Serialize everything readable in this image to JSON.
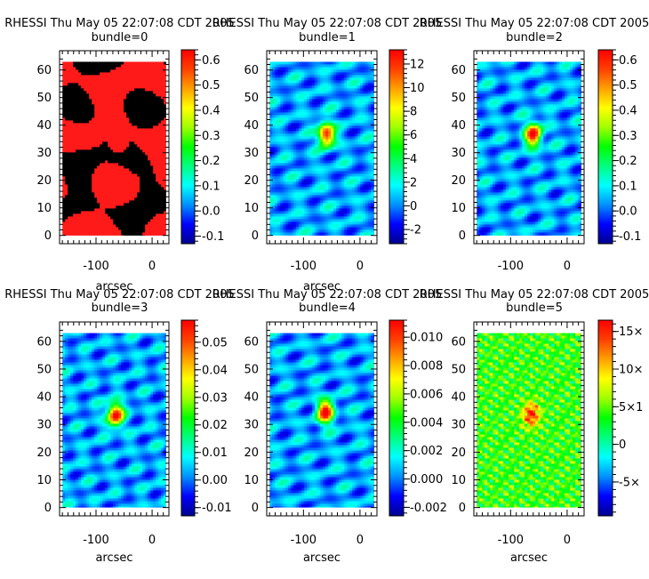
{
  "colors": {
    "colormap": [
      "#00008f",
      "#0000ff",
      "#0090ff",
      "#00ffff",
      "#00ff80",
      "#00ff00",
      "#a0ff00",
      "#ffff00",
      "#ffa000",
      "#ff4000",
      "#ff0000"
    ],
    "mask_on": "#ff1a1a",
    "mask_off": "#000000"
  },
  "chart_data": [
    {
      "type": "heatmap",
      "title": "RHESSI Thu May 05 22:07:08 CDT 2005",
      "subtitle": "bundle=0",
      "xlabel": "arcsec",
      "ylabel": "",
      "xlim": [
        -165,
        30
      ],
      "ylim": [
        -3,
        67
      ],
      "xticks": [
        "-100",
        "0"
      ],
      "yticks": [
        "0",
        "10",
        "20",
        "30",
        "40",
        "50",
        "60"
      ],
      "image_extent": {
        "x": [
          -160,
          25
        ],
        "y": [
          0,
          63
        ]
      },
      "source_x": -62,
      "source_y": 37,
      "colorbar": {
        "range": [
          -0.13,
          0.64
        ],
        "ticks": [
          "-0.1",
          "0.0",
          "0.1",
          "0.2",
          "0.3",
          "0.4",
          "0.5",
          "0.6"
        ],
        "tick_values": [
          -0.1,
          0.0,
          0.1,
          0.2,
          0.3,
          0.4,
          0.5,
          0.6
        ]
      }
    },
    {
      "type": "heatmap",
      "title": "RHESSI Thu May 05 22:07:08 CDT 2005",
      "subtitle": "bundle=1",
      "xlabel": "arcsec",
      "ylabel": "",
      "xlim": [
        -165,
        30
      ],
      "ylim": [
        -3,
        67
      ],
      "xticks": [
        "-100",
        "0"
      ],
      "yticks": [
        "0",
        "10",
        "20",
        "30",
        "40",
        "50",
        "60"
      ],
      "image_extent": {
        "x": [
          -160,
          25
        ],
        "y": [
          0,
          63
        ]
      },
      "source_x": -62,
      "source_y": 37,
      "colorbar": {
        "range": [
          -3.2,
          13.2
        ],
        "ticks": [
          "-2",
          "0",
          "2",
          "4",
          "6",
          "8",
          "10",
          "12"
        ],
        "tick_values": [
          -2,
          0,
          2,
          4,
          6,
          8,
          10,
          12
        ]
      }
    },
    {
      "type": "heatmap",
      "title": "RHESSI Thu May 05 22:07:08 CDT 2005",
      "subtitle": "bundle=2",
      "xlabel": "",
      "ylabel": "",
      "xlim": [
        -165,
        30
      ],
      "ylim": [
        -3,
        67
      ],
      "xticks": [
        "-100",
        "0"
      ],
      "yticks": [
        "0",
        "10",
        "20",
        "30",
        "40",
        "50",
        "60"
      ],
      "image_extent": {
        "x": [
          -160,
          25
        ],
        "y": [
          0,
          63
        ]
      },
      "source_x": -62,
      "source_y": 37,
      "colorbar": {
        "range": [
          -0.13,
          0.64
        ],
        "ticks": [
          "-0.1",
          "0.0",
          "0.1",
          "0.2",
          "0.3",
          "0.4",
          "0.5",
          "0.6"
        ],
        "tick_values": [
          -0.1,
          0.0,
          0.1,
          0.2,
          0.3,
          0.4,
          0.5,
          0.6
        ]
      }
    },
    {
      "type": "heatmap",
      "title": "RHESSI Thu May 05 22:07:08 CDT 2005",
      "subtitle": "bundle=3",
      "xlabel": "arcsec",
      "ylabel": "",
      "xlim": [
        -165,
        30
      ],
      "ylim": [
        -3,
        67
      ],
      "xticks": [
        "-100",
        "0"
      ],
      "yticks": [
        "0",
        "10",
        "20",
        "30",
        "40",
        "50",
        "60"
      ],
      "image_extent": {
        "x": [
          -160,
          25
        ],
        "y": [
          0,
          63
        ]
      },
      "source_x": -68,
      "source_y": 34,
      "colorbar": {
        "range": [
          -0.013,
          0.058
        ],
        "ticks": [
          "-0.01",
          "0.00",
          "0.01",
          "0.02",
          "0.03",
          "0.04",
          "0.05"
        ],
        "tick_values": [
          -0.01,
          0.0,
          0.01,
          0.02,
          0.03,
          0.04,
          0.05
        ]
      }
    },
    {
      "type": "heatmap",
      "title": "RHESSI Thu May 05 22:07:08 CDT 2005",
      "subtitle": "bundle=4",
      "xlabel": "arcsec",
      "ylabel": "",
      "xlim": [
        -165,
        30
      ],
      "ylim": [
        -3,
        67
      ],
      "xticks": [
        "-100",
        "0"
      ],
      "yticks": [
        "0",
        "10",
        "20",
        "30",
        "40",
        "50",
        "60"
      ],
      "image_extent": {
        "x": [
          -160,
          25
        ],
        "y": [
          0,
          63
        ]
      },
      "source_x": -63,
      "source_y": 35,
      "colorbar": {
        "range": [
          -0.0026,
          0.0112
        ],
        "ticks": [
          "-0.002",
          "0.000",
          "0.002",
          "0.004",
          "0.006",
          "0.008",
          "0.010"
        ],
        "tick_values": [
          -0.002,
          0.0,
          0.002,
          0.004,
          0.006,
          0.008,
          0.01
        ]
      }
    },
    {
      "type": "heatmap",
      "title": "RHESSI Thu May 05 22:07:08 CDT 2005",
      "subtitle": "bundle=5",
      "xlabel": "arcsec",
      "ylabel": "",
      "xlim": [
        -165,
        30
      ],
      "ylim": [
        -3,
        67
      ],
      "xticks": [
        "-100",
        "0"
      ],
      "yticks": [
        "0",
        "10",
        "20",
        "30",
        "40",
        "50",
        "60"
      ],
      "image_extent": {
        "x": [
          -160,
          25
        ],
        "y": [
          0,
          63
        ]
      },
      "source_x": -66,
      "source_y": 34,
      "colorbar": {
        "range": [
          -9.5,
          16.5
        ],
        "ticks": [
          "-5×",
          "0",
          "5×1",
          "10×",
          "15×"
        ],
        "tick_values": [
          -5,
          0,
          5,
          10,
          15
        ]
      }
    }
  ]
}
